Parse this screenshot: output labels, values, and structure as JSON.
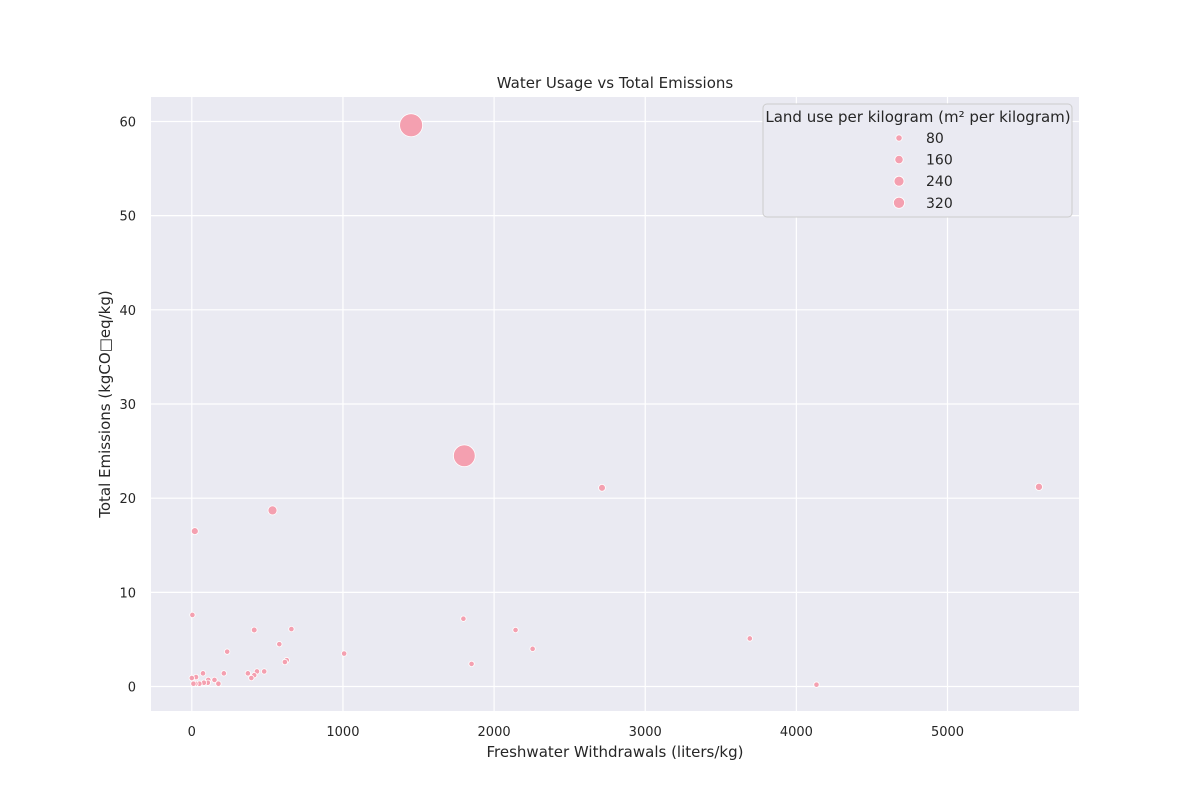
{
  "chart_data": {
    "type": "scatter",
    "title": "Water Usage vs Total Emissions",
    "xlabel": "Freshwater Withdrawals (liters/kg)",
    "ylabel": "Total Emissions (kgCO□eq/kg)",
    "xlim": [
      -270,
      5870
    ],
    "ylim": [
      -2.6,
      62.6
    ],
    "xticks": [
      0,
      1000,
      2000,
      3000,
      4000,
      5000
    ],
    "yticks": [
      0,
      10,
      20,
      30,
      40,
      50,
      60
    ],
    "grid": true,
    "legend": {
      "title": "Land use per kilogram (m² per kilogram)",
      "placement": "top-right",
      "size_values": [
        80,
        160,
        240,
        320
      ]
    },
    "colors": {
      "background": "#eaeaf2",
      "grid": "#ffffff",
      "marker": "#f4a0b0",
      "marker_edge": "#ffffff",
      "legend_bg": "#eaeaf2",
      "legend_border": "#cccccc"
    },
    "points": [
      {
        "x": 1451,
        "y": 59.6,
        "size": 369
      },
      {
        "x": 1803,
        "y": 24.5,
        "size": 327
      },
      {
        "x": 5605,
        "y": 21.2,
        "size": 20
      },
      {
        "x": 2714,
        "y": 21.1,
        "size": 17
      },
      {
        "x": 534,
        "y": 18.7,
        "size": 38
      },
      {
        "x": 20,
        "y": 16.5,
        "size": 18
      },
      {
        "x": 4,
        "y": 7.6,
        "size": 8
      },
      {
        "x": 1797,
        "y": 7.2,
        "size": 8
      },
      {
        "x": 659,
        "y": 6.1,
        "size": 8
      },
      {
        "x": 413,
        "y": 6.0,
        "size": 10
      },
      {
        "x": 2142,
        "y": 6.0,
        "size": 8
      },
      {
        "x": 3692,
        "y": 5.1,
        "size": 8
      },
      {
        "x": 579,
        "y": 4.5,
        "size": 8
      },
      {
        "x": 2255,
        "y": 4.0,
        "size": 8
      },
      {
        "x": 234,
        "y": 3.7,
        "size": 8
      },
      {
        "x": 1008,
        "y": 3.5,
        "size": 8
      },
      {
        "x": 628,
        "y": 2.8,
        "size": 8
      },
      {
        "x": 616,
        "y": 2.6,
        "size": 8
      },
      {
        "x": 1851,
        "y": 2.4,
        "size": 8
      },
      {
        "x": 479,
        "y": 1.6,
        "size": 8
      },
      {
        "x": 431,
        "y": 1.6,
        "size": 8
      },
      {
        "x": 212,
        "y": 1.4,
        "size": 8
      },
      {
        "x": 371,
        "y": 1.4,
        "size": 8
      },
      {
        "x": 74,
        "y": 1.4,
        "size": 8
      },
      {
        "x": 413,
        "y": 1.2,
        "size": 8
      },
      {
        "x": 394,
        "y": 0.9,
        "size": 8
      },
      {
        "x": 28,
        "y": 1.0,
        "size": 8
      },
      {
        "x": 0,
        "y": 0.9,
        "size": 8
      },
      {
        "x": 150,
        "y": 0.7,
        "size": 8
      },
      {
        "x": 109,
        "y": 0.7,
        "size": 8
      },
      {
        "x": 106,
        "y": 0.4,
        "size": 8
      },
      {
        "x": 80,
        "y": 0.4,
        "size": 8
      },
      {
        "x": 50,
        "y": 0.3,
        "size": 8
      },
      {
        "x": 24,
        "y": 0.3,
        "size": 8
      },
      {
        "x": 11,
        "y": 0.3,
        "size": 8
      },
      {
        "x": 176,
        "y": 0.3,
        "size": 8
      },
      {
        "x": 4133,
        "y": 0.2,
        "size": 8
      }
    ]
  }
}
